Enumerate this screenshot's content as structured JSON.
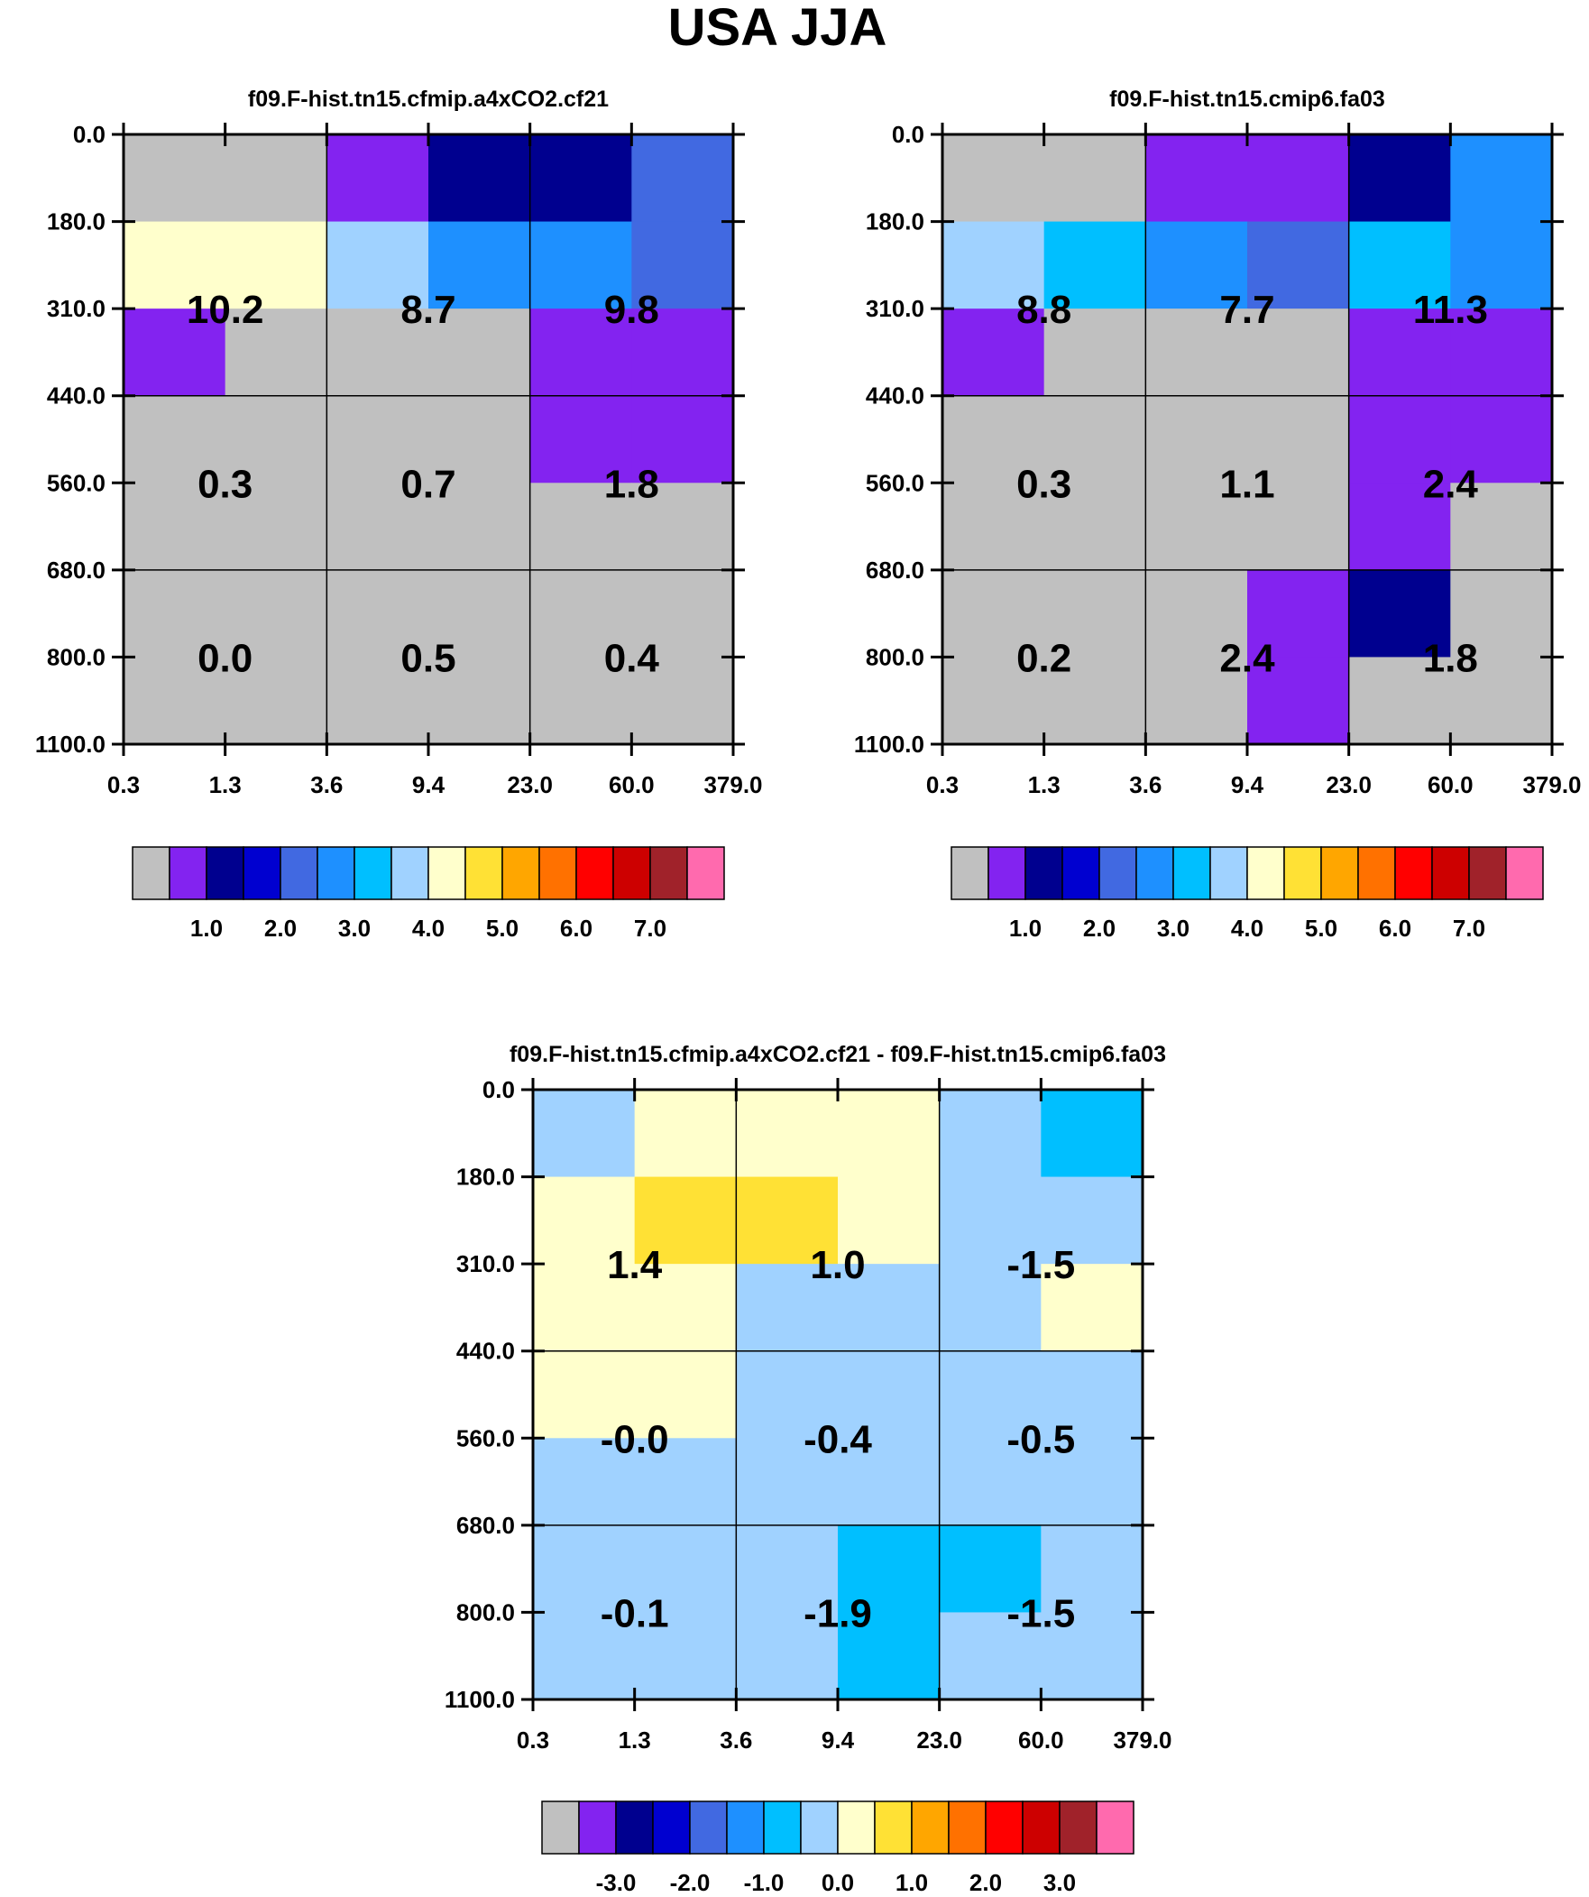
{
  "title": "USA JJA",
  "colors": {
    "palette": [
      "#c0c0c0",
      "#8323f0",
      "#00008f",
      "#0000d0",
      "#4169e1",
      "#1e90ff",
      "#00bfff",
      "#a0d2ff",
      "#ffffcc",
      "#ffe135",
      "#ffa600",
      "#ff7100",
      "#ff0000",
      "#cd0000",
      "#a0222a",
      "#ff6aae"
    ],
    "grid": "#000000"
  },
  "chart_data": [
    {
      "type": "heatmap",
      "title": "f09.F-hist.tn15.cfmip.a4xCO2.cf21",
      "x_ticks": [
        "0.3",
        "1.3",
        "3.6",
        "9.4",
        "23.0",
        "60.0",
        "379.0"
      ],
      "y_ticks": [
        "0.0",
        "180.0",
        "310.0",
        "440.0",
        "560.0",
        "680.0",
        "800.0",
        "1100.0"
      ],
      "cells": [
        [
          0,
          0,
          1,
          2,
          2,
          4
        ],
        [
          8,
          8,
          7,
          5,
          5,
          4
        ],
        [
          1,
          0,
          0,
          0,
          1,
          1
        ],
        [
          0,
          0,
          0,
          0,
          1,
          1
        ],
        [
          0,
          0,
          0,
          0,
          0,
          0
        ],
        [
          0,
          0,
          0,
          0,
          0,
          0
        ],
        [
          0,
          0,
          0,
          0,
          0,
          0
        ]
      ],
      "labels": [
        {
          "text": "10.2",
          "col": 0,
          "row": 1
        },
        {
          "text": "8.7",
          "col": 1,
          "row": 1
        },
        {
          "text": "9.8",
          "col": 2,
          "row": 1
        },
        {
          "text": "0.3",
          "col": 0,
          "row": 2
        },
        {
          "text": "0.7",
          "col": 1,
          "row": 2
        },
        {
          "text": "1.8",
          "col": 2,
          "row": 2
        },
        {
          "text": "0.0",
          "col": 0,
          "row": 3
        },
        {
          "text": "0.5",
          "col": 1,
          "row": 3
        },
        {
          "text": "0.4",
          "col": 2,
          "row": 3
        }
      ],
      "colorbar_labels": [
        "1.0",
        "2.0",
        "3.0",
        "4.0",
        "5.0",
        "6.0",
        "7.0"
      ]
    },
    {
      "type": "heatmap",
      "title": "f09.F-hist.tn15.cmip6.fa03",
      "x_ticks": [
        "0.3",
        "1.3",
        "3.6",
        "9.4",
        "23.0",
        "60.0",
        "379.0"
      ],
      "y_ticks": [
        "0.0",
        "180.0",
        "310.0",
        "440.0",
        "560.0",
        "680.0",
        "800.0",
        "1100.0"
      ],
      "cells": [
        [
          0,
          0,
          1,
          1,
          2,
          5
        ],
        [
          7,
          6,
          5,
          4,
          6,
          5
        ],
        [
          1,
          0,
          0,
          0,
          1,
          1
        ],
        [
          0,
          0,
          0,
          0,
          1,
          1
        ],
        [
          0,
          0,
          0,
          0,
          1,
          0
        ],
        [
          0,
          0,
          0,
          1,
          2,
          0
        ],
        [
          0,
          0,
          0,
          1,
          0,
          0
        ]
      ],
      "labels": [
        {
          "text": "8.8",
          "col": 0,
          "row": 1
        },
        {
          "text": "7.7",
          "col": 1,
          "row": 1
        },
        {
          "text": "11.3",
          "col": 2,
          "row": 1
        },
        {
          "text": "0.3",
          "col": 0,
          "row": 2
        },
        {
          "text": "1.1",
          "col": 1,
          "row": 2
        },
        {
          "text": "2.4",
          "col": 2,
          "row": 2
        },
        {
          "text": "0.2",
          "col": 0,
          "row": 3
        },
        {
          "text": "2.4",
          "col": 1,
          "row": 3
        },
        {
          "text": "1.8",
          "col": 2,
          "row": 3
        }
      ],
      "colorbar_labels": [
        "1.0",
        "2.0",
        "3.0",
        "4.0",
        "5.0",
        "6.0",
        "7.0"
      ]
    },
    {
      "type": "heatmap",
      "title": "f09.F-hist.tn15.cfmip.a4xCO2.cf21 - f09.F-hist.tn15.cmip6.fa03",
      "x_ticks": [
        "0.3",
        "1.3",
        "3.6",
        "9.4",
        "23.0",
        "60.0",
        "379.0"
      ],
      "y_ticks": [
        "0.0",
        "180.0",
        "310.0",
        "440.0",
        "560.0",
        "680.0",
        "800.0",
        "1100.0"
      ],
      "cells": [
        [
          7,
          8,
          8,
          8,
          7,
          6
        ],
        [
          8,
          9,
          9,
          8,
          7,
          7
        ],
        [
          8,
          8,
          7,
          7,
          7,
          8
        ],
        [
          8,
          8,
          7,
          7,
          7,
          7
        ],
        [
          7,
          7,
          7,
          7,
          7,
          7
        ],
        [
          7,
          7,
          7,
          6,
          6,
          7
        ],
        [
          7,
          7,
          7,
          6,
          7,
          7
        ]
      ],
      "labels": [
        {
          "text": "1.4",
          "col": 0,
          "row": 1
        },
        {
          "text": "1.0",
          "col": 1,
          "row": 1
        },
        {
          "text": "-1.5",
          "col": 2,
          "row": 1
        },
        {
          "text": "-0.0",
          "col": 0,
          "row": 2
        },
        {
          "text": "-0.4",
          "col": 1,
          "row": 2
        },
        {
          "text": "-0.5",
          "col": 2,
          "row": 2
        },
        {
          "text": "-0.1",
          "col": 0,
          "row": 3
        },
        {
          "text": "-1.9",
          "col": 1,
          "row": 3
        },
        {
          "text": "-1.5",
          "col": 2,
          "row": 3
        }
      ],
      "colorbar_labels": [
        "-3.0",
        "-2.0",
        "-1.0",
        "0.0",
        "1.0",
        "2.0",
        "3.0"
      ]
    }
  ]
}
